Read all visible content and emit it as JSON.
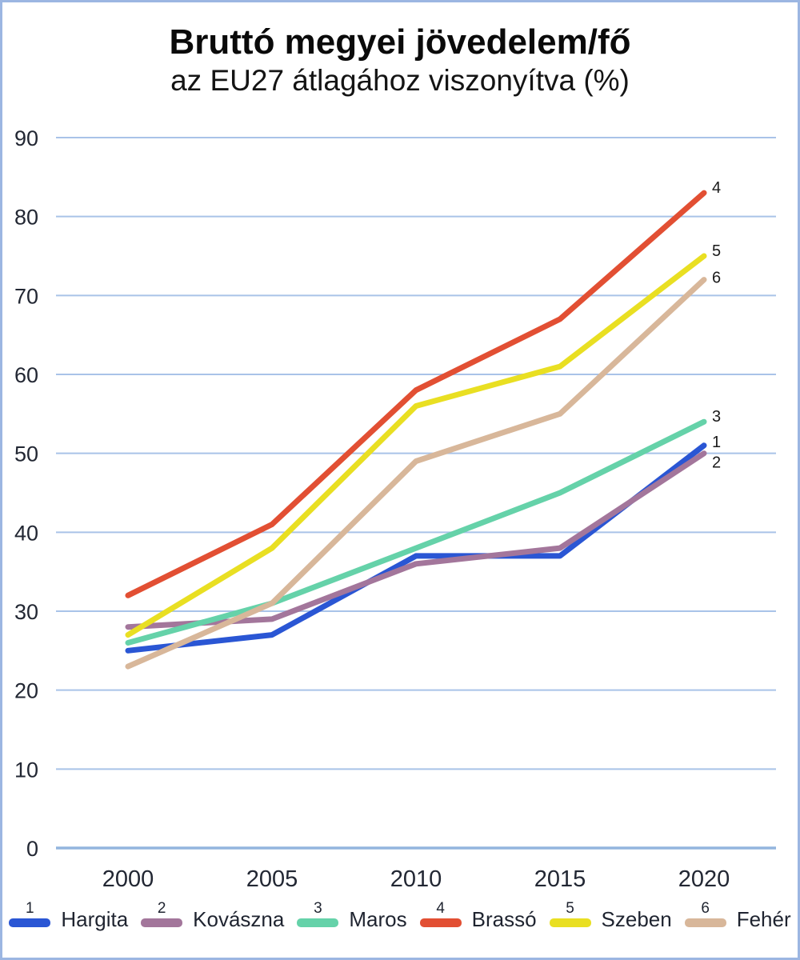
{
  "frame": {
    "border_color": "#9CB6E2",
    "background": "#FFFFFF"
  },
  "title": "Bruttó megyei jövedelem/fő",
  "subtitle": "az EU27 átlagához viszonyítva (%)",
  "chart_data": {
    "type": "line",
    "title": "Bruttó megyei jövedelem/fő",
    "subtitle": "az EU27 átlagához viszonyítva (%)",
    "x": [
      2000,
      2005,
      2010,
      2015,
      2020
    ],
    "xticklabels": [
      "2000",
      "2005",
      "2010",
      "2015",
      "2020"
    ],
    "series": [
      {
        "index": 1,
        "name": "Hargita",
        "color": "#2A56D4",
        "values": [
          25,
          27,
          37,
          37,
          51
        ]
      },
      {
        "index": 2,
        "name": "Kovászna",
        "color": "#A3769B",
        "values": [
          28,
          29,
          36,
          38,
          50
        ]
      },
      {
        "index": 3,
        "name": "Maros",
        "color": "#65D2A9",
        "values": [
          26,
          31,
          38,
          45,
          54
        ]
      },
      {
        "index": 4,
        "name": "Brassó",
        "color": "#E24F33",
        "values": [
          32,
          41,
          58,
          67,
          83
        ]
      },
      {
        "index": 5,
        "name": "Szeben",
        "color": "#E9DF22",
        "values": [
          27,
          38,
          56,
          61,
          75
        ]
      },
      {
        "index": 6,
        "name": "Fehér",
        "color": "#D8B79A",
        "values": [
          23,
          31,
          49,
          55,
          72
        ]
      }
    ],
    "ylim": [
      0,
      90
    ],
    "ytick_step": 10,
    "grid": true,
    "gridline_color": "#A9C3E8",
    "zero_line_color": "#93B5DE",
    "text_color": "#222733",
    "end_label_color": "#1a1a1a",
    "legend_position": "bottom",
    "end_labels": [
      "1",
      "2",
      "3",
      "4",
      "5",
      "6"
    ],
    "end_label_dy": {
      "1": 2,
      "2": 18,
      "3": 0,
      "4": 0,
      "5": 0,
      "6": 4
    }
  }
}
